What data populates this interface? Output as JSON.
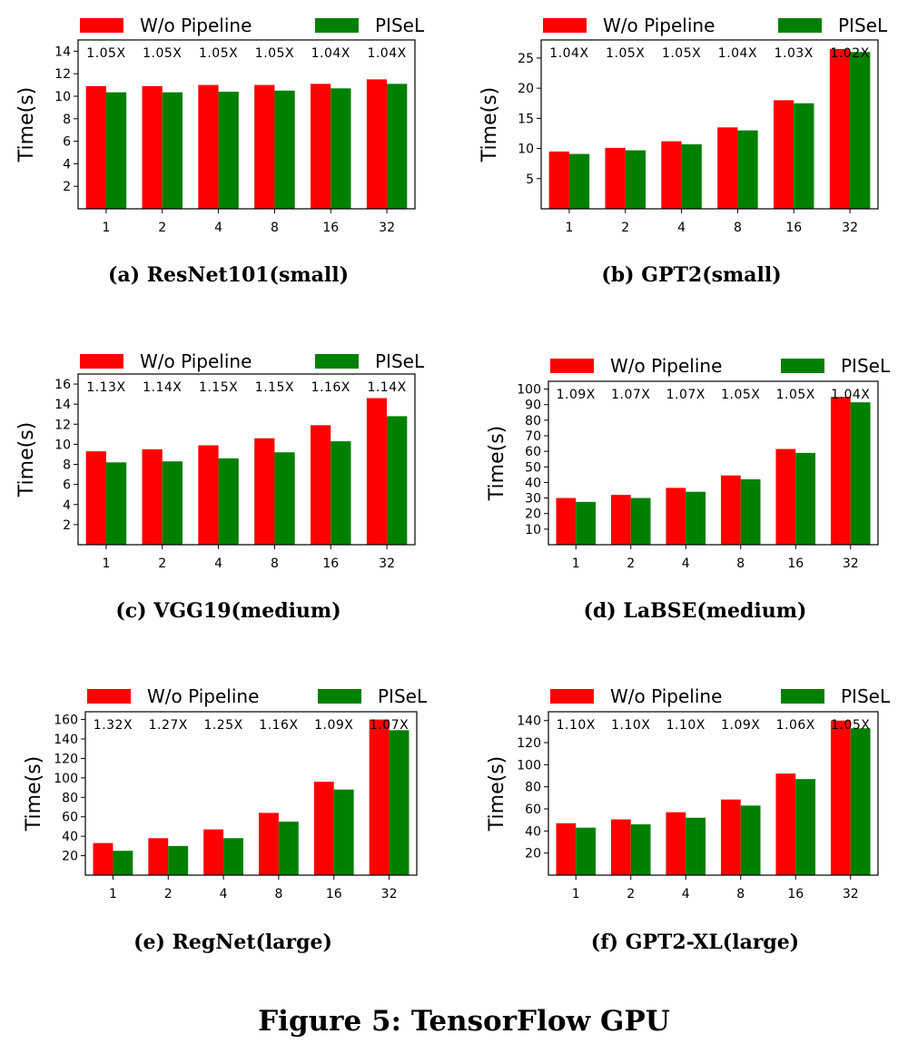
{
  "figure_caption": "Figure 5: TensorFlow GPU",
  "colors": {
    "wo_pipeline": "#ff0000",
    "pisel": "#008000"
  },
  "chart_data": [
    {
      "type": "bar",
      "caption": "(a) ResNet101(small)",
      "categories": [
        "1",
        "2",
        "4",
        "8",
        "16",
        "32"
      ],
      "series": [
        {
          "name": "W/o Pipeline",
          "values": [
            10.9,
            10.9,
            11.0,
            11.0,
            11.1,
            11.5
          ]
        },
        {
          "name": "PISeL",
          "values": [
            10.35,
            10.35,
            10.4,
            10.5,
            10.7,
            11.1
          ]
        }
      ],
      "speedups": [
        "1.05X",
        "1.05X",
        "1.05X",
        "1.05X",
        "1.04X",
        "1.04X"
      ],
      "ylabel": "Time(s)",
      "ylim": [
        0,
        15
      ],
      "yticks": [
        2,
        4,
        6,
        8,
        10,
        12,
        14
      ],
      "legend": "top"
    },
    {
      "type": "bar",
      "caption": "(b) GPT2(small)",
      "categories": [
        "1",
        "2",
        "4",
        "8",
        "16",
        "32"
      ],
      "series": [
        {
          "name": "W/o Pipeline",
          "values": [
            9.5,
            10.1,
            11.2,
            13.5,
            18.0,
            26.5
          ]
        },
        {
          "name": "PISeL",
          "values": [
            9.1,
            9.7,
            10.7,
            13.0,
            17.5,
            26.0
          ]
        }
      ],
      "speedups": [
        "1.04X",
        "1.05X",
        "1.05X",
        "1.04X",
        "1.03X",
        "1.02X"
      ],
      "ylabel": "Time(s)",
      "ylim": [
        0,
        28.0
      ],
      "yticks": [
        5,
        10,
        15,
        20,
        25
      ],
      "legend": "top"
    },
    {
      "type": "bar",
      "caption": "(c) VGG19(medium)",
      "categories": [
        "1",
        "2",
        "4",
        "8",
        "16",
        "32"
      ],
      "series": [
        {
          "name": "W/o Pipeline",
          "values": [
            9.3,
            9.5,
            9.9,
            10.6,
            11.9,
            14.6
          ]
        },
        {
          "name": "PISeL",
          "values": [
            8.2,
            8.3,
            8.6,
            9.2,
            10.3,
            12.8
          ]
        }
      ],
      "speedups": [
        "1.13X",
        "1.14X",
        "1.15X",
        "1.15X",
        "1.16X",
        "1.14X"
      ],
      "ylabel": "Time(s)",
      "ylim": [
        0,
        17
      ],
      "yticks": [
        2,
        4,
        6,
        8,
        10,
        12,
        14,
        16
      ],
      "legend": "top"
    },
    {
      "type": "bar",
      "caption": "(d) LaBSE(medium)",
      "categories": [
        "1",
        "2",
        "4",
        "8",
        "16",
        "32"
      ],
      "series": [
        {
          "name": "W/o Pipeline",
          "values": [
            30,
            32,
            36.5,
            44.5,
            61.5,
            95
          ]
        },
        {
          "name": "PISeL",
          "values": [
            27.5,
            30,
            34,
            42,
            59,
            91.5
          ]
        }
      ],
      "speedups": [
        "1.09X",
        "1.07X",
        "1.07X",
        "1.05X",
        "1.05X",
        "1.04X"
      ],
      "ylabel": "Time(s)",
      "ylim": [
        0,
        105
      ],
      "yticks": [
        10,
        20,
        30,
        40,
        50,
        60,
        70,
        80,
        90,
        100
      ],
      "legend": "top"
    },
    {
      "type": "bar",
      "caption": "(e) RegNet(large)",
      "categories": [
        "1",
        "2",
        "4",
        "8",
        "16",
        "32"
      ],
      "series": [
        {
          "name": "W/o Pipeline",
          "values": [
            33,
            38,
            47,
            64,
            96,
            160
          ]
        },
        {
          "name": "PISeL",
          "values": [
            25,
            30,
            38,
            55,
            88,
            149
          ]
        }
      ],
      "speedups": [
        "1.32X",
        "1.27X",
        "1.25X",
        "1.16X",
        "1.09X",
        "1.07X"
      ],
      "ylabel": "Time(s)",
      "ylim": [
        0,
        168
      ],
      "yticks": [
        20,
        40,
        60,
        80,
        100,
        120,
        140,
        160
      ],
      "legend": "top"
    },
    {
      "type": "bar",
      "caption": "(f) GPT2-XL(large)",
      "categories": [
        "1",
        "2",
        "4",
        "8",
        "16",
        "32"
      ],
      "series": [
        {
          "name": "W/o Pipeline",
          "values": [
            47,
            50.5,
            57,
            68.5,
            92,
            140
          ]
        },
        {
          "name": "PISeL",
          "values": [
            43,
            46,
            52,
            63,
            87,
            133
          ]
        }
      ],
      "speedups": [
        "1.10X",
        "1.10X",
        "1.10X",
        "1.09X",
        "1.06X",
        "1.05X"
      ],
      "ylabel": "Time(s)",
      "ylim": [
        0,
        148
      ],
      "yticks": [
        20,
        40,
        60,
        80,
        100,
        120,
        140
      ],
      "legend": "top"
    }
  ]
}
